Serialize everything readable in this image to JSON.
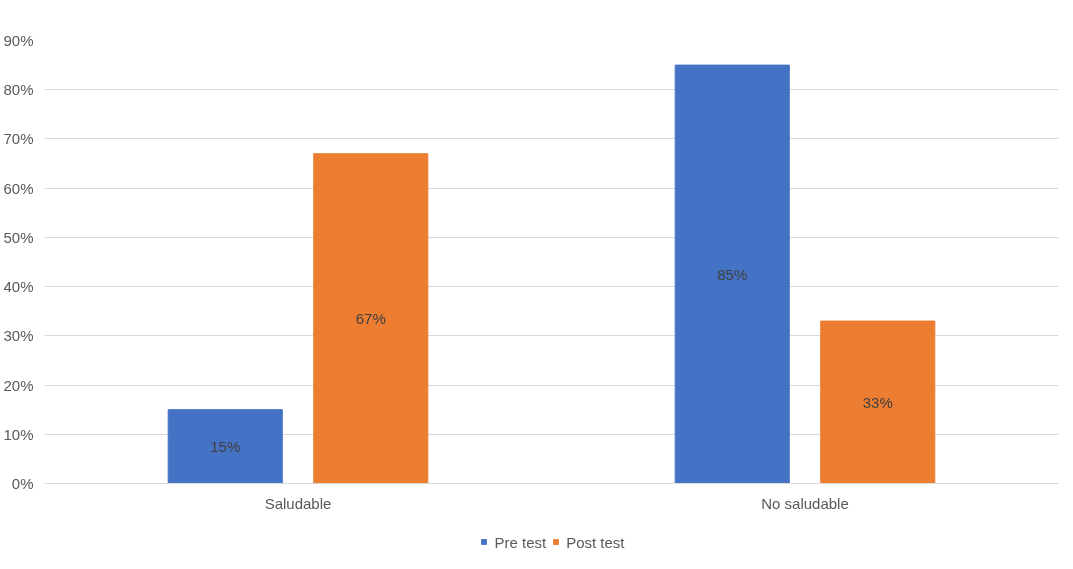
{
  "chart_data": {
    "type": "bar",
    "categories": [
      "Saludable",
      "No saludable"
    ],
    "series": [
      {
        "name": "Pre test",
        "color": "#4472c4",
        "values": [
          15,
          85
        ],
        "value_labels": [
          "15%",
          "85%"
        ]
      },
      {
        "name": "Post test",
        "color": "#ed7d31",
        "values": [
          67,
          33
        ],
        "value_labels": [
          "67%",
          "33%"
        ]
      }
    ],
    "ylim": [
      0,
      90
    ],
    "yticks": [
      {
        "value": 0,
        "label": "0%"
      },
      {
        "value": 10,
        "label": "10%"
      },
      {
        "value": 20,
        "label": "20%"
      },
      {
        "value": 30,
        "label": "30%"
      },
      {
        "value": 40,
        "label": "40%"
      },
      {
        "value": 50,
        "label": "50%"
      },
      {
        "value": 60,
        "label": "60%"
      },
      {
        "value": 70,
        "label": "70%"
      },
      {
        "value": 80,
        "label": "80%"
      },
      {
        "value": 90,
        "label": "90%"
      }
    ],
    "grid": "y",
    "legend": "bottom"
  }
}
